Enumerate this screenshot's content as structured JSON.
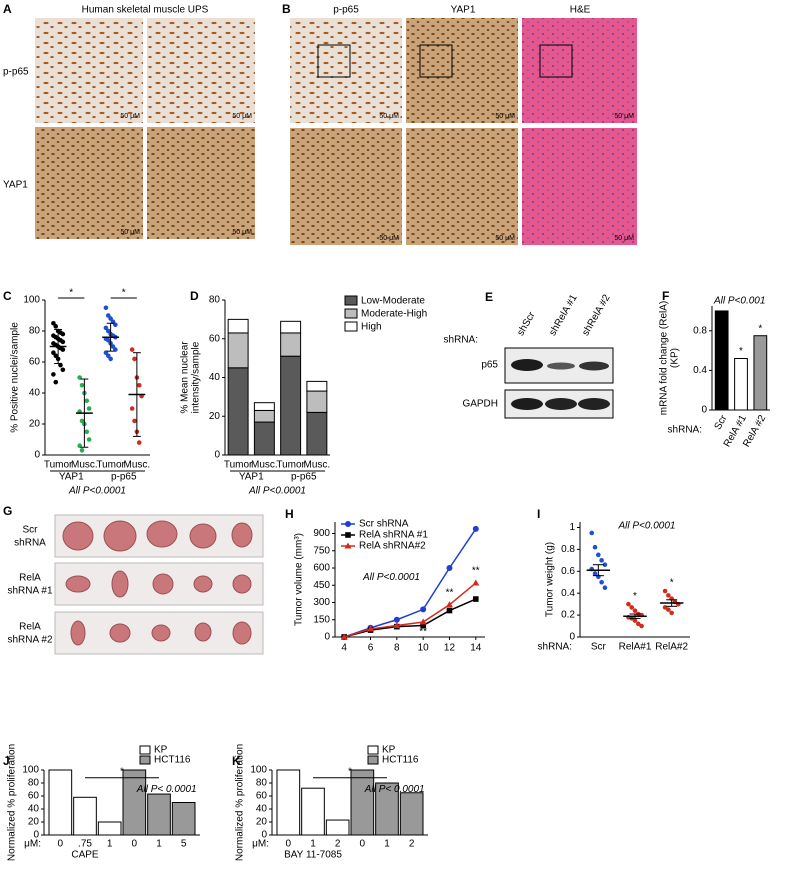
{
  "panels": {
    "A": {
      "label": "A",
      "title": "Human skeletal muscle UPS",
      "rows": [
        "p-p65",
        "YAP1"
      ],
      "scale_bar": "50 μM"
    },
    "B": {
      "label": "B",
      "columns": [
        "p-p65",
        "YAP1",
        "H&E"
      ],
      "scale_bar": "50 μM"
    },
    "E": {
      "label": "E",
      "prefix": "shRNA:",
      "lanes": [
        "shScr",
        "shRelA #1",
        "shRelA #2"
      ],
      "bands": [
        "p65",
        "GAPDH"
      ]
    },
    "G": {
      "label": "G",
      "rows": [
        [
          "Scr",
          "shRNA"
        ],
        [
          "RelA",
          "shRNA #1"
        ],
        [
          "RelA",
          "shRNA #2"
        ]
      ]
    }
  },
  "chart_data": [
    {
      "type": "dot",
      "label": "C",
      "ylabel": "% Positive nuclei/sample",
      "categories": [
        "Tumor",
        "Musc.",
        "Tumor",
        "Musc."
      ],
      "groups": [
        "YAP1",
        "p-p65"
      ],
      "colors": [
        "#000000",
        "#22b14c",
        "#1f4fd1",
        "#d42a1e"
      ],
      "points": [
        [
          85,
          83,
          80,
          79,
          78,
          77,
          76,
          75,
          74,
          73,
          72,
          71,
          70,
          69,
          68,
          66,
          64,
          62,
          58,
          55,
          52,
          47
        ],
        [
          50,
          45,
          40,
          35,
          30,
          28,
          22,
          20,
          15,
          10,
          6,
          3
        ],
        [
          95,
          90,
          88,
          86,
          84,
          82,
          80,
          78,
          77,
          76,
          75,
          74,
          72,
          70,
          68,
          66,
          64,
          62
        ],
        [
          68,
          62,
          50,
          45,
          38,
          30,
          22,
          15,
          8
        ]
      ],
      "means": [
        70,
        27,
        76,
        39
      ],
      "errors": [
        11,
        22,
        9,
        27
      ],
      "ylim": [
        0,
        100
      ],
      "yticks": [
        0,
        20,
        40,
        60,
        80,
        100
      ],
      "sig": "*",
      "note": "All P<0.0001"
    },
    {
      "type": "stacked",
      "label": "D",
      "ylabel": [
        "% Mean nuclear",
        "intensity/sample"
      ],
      "categories": [
        "Tumor",
        "Musc.",
        "Tumor",
        "Musc."
      ],
      "groups": [
        "YAP1",
        "p-p65"
      ],
      "series": [
        {
          "name": "Low-Moderate",
          "color": "#5a5a5a",
          "values": [
            45,
            17,
            51,
            22
          ]
        },
        {
          "name": "Moderate-High",
          "color": "#bdbdbd",
          "values": [
            18,
            6,
            12,
            11
          ]
        },
        {
          "name": "High",
          "color": "#ffffff",
          "values": [
            7,
            4,
            6,
            5
          ]
        }
      ],
      "ylim": [
        0,
        80
      ],
      "yticks": [
        0,
        20,
        40,
        60,
        80
      ],
      "note": "All P<0.0001"
    },
    {
      "type": "bar",
      "label": "F",
      "ylabel": [
        "mRNA fold change (RelA)",
        "(KP)"
      ],
      "xprefix": "shRNA:",
      "categories": [
        "Scr",
        "RelA #1",
        "RelA #2"
      ],
      "values": [
        1.0,
        0.52,
        0.75
      ],
      "colors": [
        "#000000",
        "#ffffff",
        "#999999"
      ],
      "ylim": [
        0,
        1.05
      ],
      "yticks": [
        0,
        0.4,
        0.8
      ],
      "sig": "*",
      "note": "All P<0.001"
    },
    {
      "type": "line",
      "label": "H",
      "ylabel": "Tumor volume (mm³)",
      "x": [
        4,
        6,
        8,
        10,
        12,
        14
      ],
      "xlim": [
        3.3,
        14.7
      ],
      "xticks": [
        4,
        6,
        8,
        10,
        12,
        14
      ],
      "series": [
        {
          "name": "Scr shRNA",
          "color": "#1f3fd1",
          "values": [
            0,
            80,
            150,
            240,
            600,
            940
          ]
        },
        {
          "name": "RelA shRNA #1",
          "color": "#000000",
          "values": [
            0,
            60,
            90,
            100,
            230,
            330
          ]
        },
        {
          "name": "RelA shRNA#2",
          "color": "#d42a1e",
          "values": [
            0,
            70,
            100,
            130,
            280,
            470
          ]
        }
      ],
      "ylim": [
        0,
        1000
      ],
      "yticks": [
        0,
        150,
        300,
        450,
        600,
        750,
        900
      ],
      "sig": "**",
      "note": "All P<0.0001"
    },
    {
      "type": "dot",
      "label": "I",
      "ylabel": "Tumor weight (g)",
      "xprefix": "shRNA:",
      "categories": [
        "Scr",
        "RelA#1",
        "RelA#2"
      ],
      "colors": [
        "#1f4fd1",
        "#d42a1e",
        "#d42a1e"
      ],
      "points": [
        [
          0.95,
          0.82,
          0.75,
          0.7,
          0.66,
          0.62,
          0.58,
          0.55,
          0.5,
          0.45
        ],
        [
          0.3,
          0.27,
          0.24,
          0.21,
          0.2,
          0.18,
          0.17,
          0.15,
          0.12,
          0.1
        ],
        [
          0.42,
          0.38,
          0.35,
          0.32,
          0.3,
          0.27,
          0.25,
          0.22
        ]
      ],
      "means": [
        0.61,
        0.19,
        0.31
      ],
      "errors": [
        0.05,
        0.02,
        0.03
      ],
      "ylim": [
        0,
        1.05
      ],
      "yticks": [
        0,
        0.2,
        0.4,
        0.6,
        0.8,
        1
      ],
      "sig": "*",
      "note": "All P<0.0001"
    },
    {
      "type": "grouped",
      "label": "J",
      "ylabel": "Normalized % proliferation",
      "xprefix": "μM:",
      "xlabel": "CAPE",
      "series": [
        {
          "name": "KP",
          "color": "#ffffff",
          "categories": [
            "0",
            ".75",
            "1"
          ],
          "values": [
            100,
            58,
            20
          ]
        },
        {
          "name": "HCT116",
          "color": "#999999",
          "categories": [
            "0",
            "1",
            "5"
          ],
          "values": [
            100,
            63,
            50
          ]
        }
      ],
      "ylim": [
        0,
        100
      ],
      "yticks": [
        0,
        20,
        40,
        60,
        80,
        100
      ],
      "sig": "*",
      "note": "All P< 0.0001"
    },
    {
      "type": "grouped",
      "label": "K",
      "ylabel": "Normalized % proliferation",
      "xprefix": "μM:",
      "xlabel": "BAY 11-7085",
      "series": [
        {
          "name": "KP",
          "color": "#ffffff",
          "categories": [
            "0",
            "1",
            "2"
          ],
          "values": [
            100,
            72,
            23
          ]
        },
        {
          "name": "HCT116",
          "color": "#999999",
          "categories": [
            "0",
            "1",
            "2"
          ],
          "values": [
            100,
            80,
            65
          ]
        }
      ],
      "ylim": [
        0,
        100
      ],
      "yticks": [
        0,
        20,
        40,
        60,
        80,
        100
      ],
      "sig": "*",
      "note": "All P< 0.0001"
    }
  ]
}
